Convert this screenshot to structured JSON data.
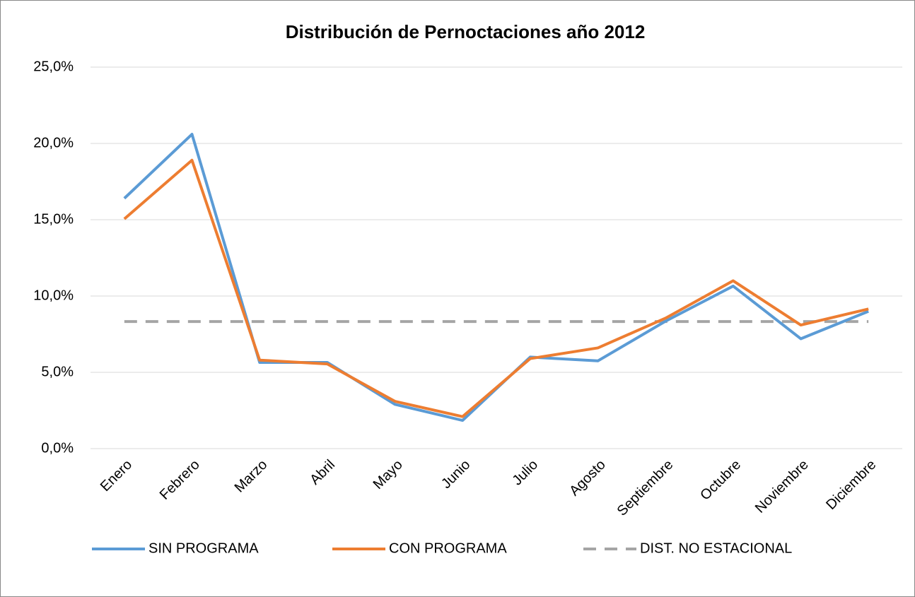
{
  "chart_data": {
    "type": "line",
    "title": "Distribución de Pernoctaciones año 2012",
    "categories": [
      "Enero",
      "Febrero",
      "Marzo",
      "Abril",
      "Mayo",
      "Junio",
      "Julio",
      "Agosto",
      "Septiembre",
      "Octubre",
      "Noviembre",
      "Diciembre"
    ],
    "series": [
      {
        "name": "SIN PROGRAMA",
        "color": "#5b9bd5",
        "dash": false,
        "values": [
          16.4,
          20.6,
          5.65,
          5.65,
          2.9,
          1.85,
          6.0,
          5.75,
          8.35,
          10.65,
          7.2,
          9.0
        ]
      },
      {
        "name": "CON PROGRAMA",
        "color": "#ed7d31",
        "dash": false,
        "values": [
          15.05,
          18.9,
          5.8,
          5.55,
          3.1,
          2.1,
          5.9,
          6.6,
          8.55,
          11.0,
          8.1,
          9.15
        ]
      },
      {
        "name": "DIST. NO ESTACIONAL",
        "color": "#a5a5a5",
        "dash": true,
        "values": [
          8.33,
          8.33,
          8.33,
          8.33,
          8.33,
          8.33,
          8.33,
          8.33,
          8.33,
          8.33,
          8.33,
          8.33
        ]
      }
    ],
    "ylim": [
      0,
      25
    ],
    "yticks": [
      {
        "value": 0,
        "label": "0,0%"
      },
      {
        "value": 5,
        "label": "5,0%"
      },
      {
        "value": 10,
        "label": "10,0%"
      },
      {
        "value": 15,
        "label": "15,0%"
      },
      {
        "value": 20,
        "label": "20,0%"
      },
      {
        "value": 25,
        "label": "25,0%"
      }
    ],
    "grid": true,
    "legend": "bottom"
  }
}
